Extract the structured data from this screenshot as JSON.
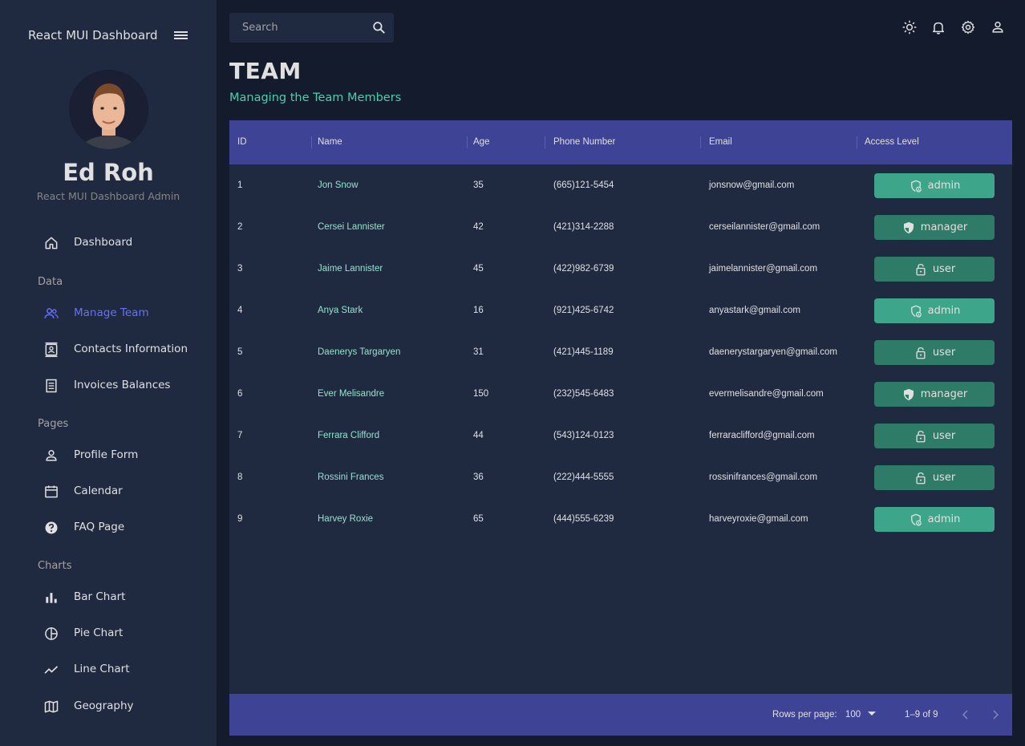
{
  "sidebar": {
    "brand": "React MUI Dashboard",
    "profile": {
      "name": "Ed Roh",
      "role": "React MUI Dashboard Admin"
    },
    "dashboard": "Dashboard",
    "sections": {
      "data": "Data",
      "pages": "Pages",
      "charts": "Charts"
    },
    "items": [
      {
        "label": "Manage Team",
        "icon": "people-icon"
      },
      {
        "label": "Contacts Information",
        "icon": "contacts-icon"
      },
      {
        "label": "Invoices Balances",
        "icon": "receipt-icon"
      },
      {
        "label": "Profile Form",
        "icon": "person-icon"
      },
      {
        "label": "Calendar",
        "icon": "calendar-icon"
      },
      {
        "label": "FAQ Page",
        "icon": "help-icon"
      },
      {
        "label": "Bar Chart",
        "icon": "bar-chart-icon"
      },
      {
        "label": "Pie Chart",
        "icon": "pie-chart-icon"
      },
      {
        "label": "Line Chart",
        "icon": "line-chart-icon"
      },
      {
        "label": "Geography",
        "icon": "map-icon"
      }
    ],
    "active": "Manage Team"
  },
  "topbar": {
    "search_placeholder": "Search"
  },
  "header": {
    "title": "TEAM",
    "subtitle": "Managing the Team Members"
  },
  "table": {
    "columns": [
      "ID",
      "Name",
      "Age",
      "Phone Number",
      "Email",
      "Access Level"
    ],
    "rows": [
      {
        "id": "1",
        "name": "Jon Snow",
        "age": "35",
        "phone": "(665)121-5454",
        "email": "jonsnow@gmail.com",
        "access": "admin"
      },
      {
        "id": "2",
        "name": "Cersei Lannister",
        "age": "42",
        "phone": "(421)314-2288",
        "email": "cerseilannister@gmail.com",
        "access": "manager"
      },
      {
        "id": "3",
        "name": "Jaime Lannister",
        "age": "45",
        "phone": "(422)982-6739",
        "email": "jaimelannister@gmail.com",
        "access": "user"
      },
      {
        "id": "4",
        "name": "Anya Stark",
        "age": "16",
        "phone": "(921)425-6742",
        "email": "anyastark@gmail.com",
        "access": "admin"
      },
      {
        "id": "5",
        "name": "Daenerys Targaryen",
        "age": "31",
        "phone": "(421)445-1189",
        "email": "daenerystargaryen@gmail.com",
        "access": "user"
      },
      {
        "id": "6",
        "name": "Ever Melisandre",
        "age": "150",
        "phone": "(232)545-6483",
        "email": "evermelisandre@gmail.com",
        "access": "manager"
      },
      {
        "id": "7",
        "name": "Ferrara Clifford",
        "age": "44",
        "phone": "(543)124-0123",
        "email": "ferraraclifford@gmail.com",
        "access": "user"
      },
      {
        "id": "8",
        "name": "Rossini Frances",
        "age": "36",
        "phone": "(222)444-5555",
        "email": "rossinifrances@gmail.com",
        "access": "user"
      },
      {
        "id": "9",
        "name": "Harvey Roxie",
        "age": "65",
        "phone": "(444)555-6239",
        "email": "harveyroxie@gmail.com",
        "access": "admin"
      }
    ],
    "footer": {
      "rows_per_page_label": "Rows per page:",
      "rows_per_page": "100",
      "range": "1–9 of 9"
    }
  },
  "colors": {
    "sidebar_bg": "#1f2a40",
    "page_bg": "#141b2d",
    "header_bg": "#3e4396",
    "accent_green": "#4cceac",
    "name_green": "#94e2cd",
    "admin_badge": "#3da58a",
    "other_badge": "#2e7c67",
    "active_nav": "#6870fa"
  }
}
